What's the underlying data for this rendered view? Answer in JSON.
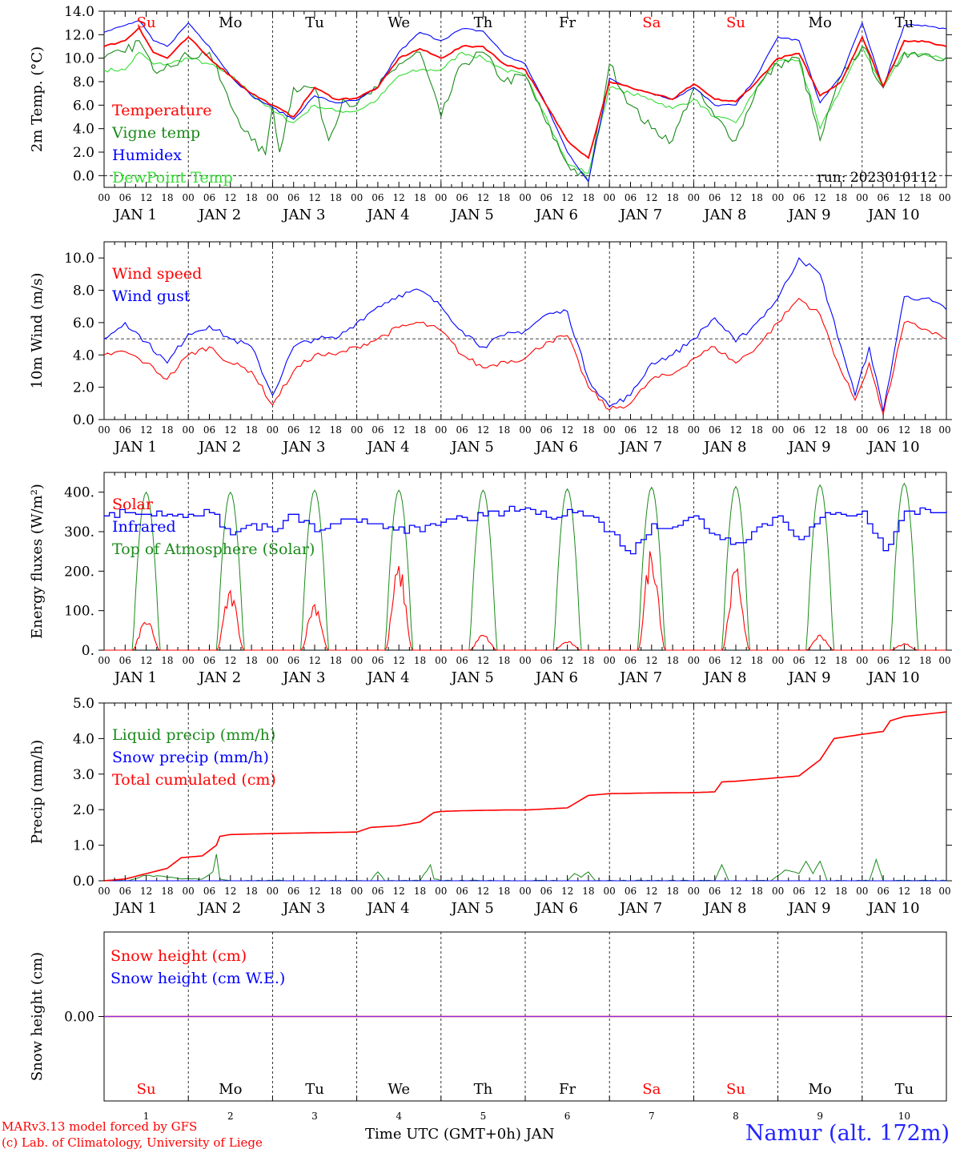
{
  "footer": {
    "credit_line1": "MARv3.13 model forced by GFS",
    "credit_line2": "(c) Lab. of Climatology, University of Liege",
    "xaxis_title": "Time UTC (GMT+0h) JAN",
    "station": "Namur (alt. 172m)"
  },
  "colors": {
    "red": "#ff0000",
    "green": "#1a8a1a",
    "blue": "#0000ff",
    "lightgreen": "#33dd33",
    "purple": "#8a2be2"
  },
  "days": {
    "weekday": [
      "Su",
      "Mo",
      "Tu",
      "We",
      "Th",
      "Fr",
      "Sa",
      "Su",
      "Mo",
      "Tu"
    ],
    "weekend_red": [
      true,
      false,
      false,
      false,
      false,
      false,
      true,
      true,
      false,
      false
    ],
    "date_labels": [
      "JAN  1",
      "JAN  2",
      "JAN  3",
      "JAN  4",
      "JAN  5",
      "JAN  6",
      "JAN  7",
      "JAN  8",
      "JAN  9",
      "JAN 10"
    ],
    "day_numbers": [
      "1",
      "2",
      "3",
      "4",
      "5",
      "6",
      "7",
      "8",
      "9",
      "10"
    ],
    "hour_ticks": [
      "00",
      "06",
      "12",
      "18"
    ],
    "end_tick": "00"
  },
  "chart_data": [
    {
      "type": "line",
      "ylabel": "2m Temp. (°C)",
      "ylim": [
        -1,
        14
      ],
      "yticks": [
        "0.0",
        "2.0",
        "4.0",
        "6.0",
        "8.0",
        "10.0",
        "12.0",
        "14.0"
      ],
      "annotation": "run: 2023010112",
      "dashed_y": 0,
      "x_unit": "hours since JAN 1 00 UTC",
      "legend": [
        "Temperature",
        "Vigne temp",
        "Humidex",
        "DewPoint Temp"
      ],
      "series": [
        {
          "name": "Temperature",
          "color": "red",
          "x": [
            0,
            6,
            10,
            14,
            18,
            24,
            30,
            36,
            42,
            48,
            54,
            60,
            66,
            72,
            78,
            84,
            90,
            96,
            102,
            108,
            114,
            120,
            126,
            132,
            138,
            144,
            150,
            156,
            162,
            168,
            174,
            180,
            186,
            192,
            198,
            204,
            210,
            216,
            222,
            228,
            234,
            240
          ],
          "y": [
            11.0,
            11.5,
            12.6,
            10.5,
            10.0,
            11.8,
            10.0,
            8.5,
            7.0,
            6.0,
            5.0,
            7.5,
            6.5,
            6.6,
            7.5,
            10.0,
            10.8,
            10.0,
            11.0,
            11.0,
            9.5,
            9.0,
            6.0,
            3.0,
            1.5,
            8.0,
            7.5,
            7.0,
            6.5,
            7.8,
            6.5,
            6.3,
            8.0,
            10.0,
            10.4,
            6.8,
            8.0,
            11.8,
            7.6,
            11.5,
            11.4,
            11.0
          ]
        },
        {
          "name": "Vigne temp",
          "color": "green",
          "x": [
            0,
            6,
            10,
            14,
            18,
            24,
            30,
            36,
            42,
            46,
            48,
            50,
            54,
            60,
            64,
            68,
            72,
            78,
            84,
            90,
            96,
            102,
            108,
            114,
            120,
            126,
            132,
            138,
            144,
            150,
            156,
            162,
            168,
            174,
            180,
            186,
            192,
            198,
            204,
            210,
            216,
            222,
            228,
            234,
            240
          ],
          "y": [
            10.0,
            10.5,
            11.5,
            9.0,
            9.5,
            10.2,
            10.5,
            6.0,
            3.0,
            1.8,
            6.0,
            2.0,
            7.5,
            7.5,
            3.0,
            6.5,
            6.0,
            7.5,
            9.5,
            10.5,
            5.0,
            9.5,
            10.5,
            8.0,
            8.5,
            4.5,
            1.0,
            -0.5,
            9.5,
            6.0,
            4.0,
            3.0,
            7.5,
            5.0,
            3.0,
            7.5,
            9.5,
            10.0,
            3.0,
            8.5,
            11.0,
            7.5,
            10.5,
            10.4,
            10.1
          ]
        },
        {
          "name": "Humidex",
          "color": "blue",
          "x": [
            0,
            6,
            10,
            14,
            18,
            24,
            30,
            36,
            42,
            48,
            54,
            60,
            66,
            72,
            78,
            84,
            90,
            96,
            102,
            108,
            114,
            120,
            126,
            132,
            138,
            144,
            150,
            156,
            162,
            168,
            174,
            180,
            186,
            192,
            198,
            204,
            210,
            216,
            222,
            228,
            234,
            240
          ],
          "y": [
            12.2,
            12.8,
            13.2,
            11.5,
            11.0,
            13.0,
            11.0,
            8.5,
            6.8,
            5.8,
            4.8,
            6.8,
            6.2,
            6.4,
            7.5,
            10.5,
            12.2,
            11.5,
            12.5,
            12.3,
            10.3,
            9.5,
            6.0,
            2.0,
            -0.5,
            8.3,
            7.5,
            7.0,
            6.5,
            7.5,
            6.0,
            6.0,
            8.5,
            11.8,
            11.5,
            6.2,
            8.5,
            13.0,
            7.5,
            12.8,
            12.8,
            12.5
          ]
        },
        {
          "name": "DewPoint Temp",
          "color": "lightgreen",
          "x": [
            0,
            6,
            10,
            14,
            18,
            24,
            30,
            36,
            42,
            48,
            54,
            60,
            66,
            72,
            78,
            84,
            90,
            96,
            102,
            108,
            114,
            120,
            126,
            132,
            138,
            144,
            150,
            156,
            162,
            168,
            174,
            180,
            186,
            192,
            198,
            204,
            210,
            216,
            222,
            228,
            234,
            240
          ],
          "y": [
            9.0,
            9.0,
            10.5,
            9.5,
            9.5,
            10.0,
            9.5,
            8.5,
            7.0,
            5.5,
            4.5,
            6.0,
            5.5,
            5.5,
            6.5,
            8.5,
            9.0,
            9.0,
            10.5,
            10.0,
            9.0,
            8.5,
            5.0,
            1.0,
            0.2,
            7.5,
            7.0,
            6.5,
            5.7,
            6.5,
            5.0,
            4.5,
            7.5,
            9.8,
            9.8,
            4.0,
            7.5,
            11.0,
            7.5,
            10.5,
            10.3,
            10.0
          ]
        }
      ]
    },
    {
      "type": "line",
      "ylabel": "10m Wind (m/s)",
      "ylim": [
        0,
        11
      ],
      "yticks": [
        "0.0",
        "2.0",
        "4.0",
        "6.0",
        "8.0",
        "10.0"
      ],
      "dashed_y": 5,
      "legend": [
        "Wind speed",
        "Wind gust"
      ],
      "series": [
        {
          "name": "Wind speed",
          "color": "red",
          "x": [
            0,
            6,
            12,
            18,
            24,
            30,
            36,
            42,
            48,
            54,
            60,
            66,
            72,
            78,
            84,
            90,
            96,
            102,
            108,
            114,
            120,
            126,
            132,
            138,
            144,
            150,
            156,
            162,
            168,
            174,
            180,
            186,
            192,
            198,
            204,
            210,
            214,
            218,
            222,
            228,
            234,
            240
          ],
          "y": [
            4.0,
            4.2,
            3.5,
            2.5,
            4.0,
            4.5,
            3.5,
            3.0,
            0.9,
            3.0,
            4.0,
            4.0,
            4.5,
            5.0,
            5.7,
            6.0,
            5.5,
            4.0,
            3.2,
            3.6,
            3.8,
            4.8,
            5.2,
            2.0,
            0.6,
            1.0,
            2.5,
            2.8,
            3.8,
            4.5,
            3.5,
            4.5,
            6.0,
            7.5,
            6.5,
            3.0,
            1.2,
            3.5,
            0.3,
            6.0,
            5.6,
            5.0
          ]
        },
        {
          "name": "Wind gust",
          "color": "blue",
          "x": [
            0,
            6,
            12,
            18,
            24,
            30,
            36,
            42,
            48,
            54,
            60,
            66,
            72,
            78,
            84,
            90,
            96,
            102,
            108,
            114,
            120,
            126,
            132,
            138,
            144,
            150,
            156,
            162,
            168,
            174,
            180,
            186,
            192,
            198,
            204,
            210,
            214,
            218,
            222,
            228,
            234,
            240
          ],
          "y": [
            5.0,
            6.0,
            4.8,
            3.5,
            5.3,
            5.8,
            5.0,
            4.5,
            1.5,
            4.5,
            5.0,
            5.0,
            6.0,
            7.0,
            7.7,
            8.0,
            7.0,
            5.5,
            4.5,
            5.2,
            5.5,
            6.5,
            6.7,
            2.5,
            0.8,
            1.5,
            3.5,
            4.0,
            5.0,
            6.3,
            4.8,
            6.0,
            7.5,
            10.0,
            9.0,
            4.5,
            1.5,
            4.5,
            0.5,
            7.6,
            7.5,
            6.8
          ]
        }
      ]
    },
    {
      "type": "line",
      "ylabel": "Energy fluxes (W/m²)",
      "ylim": [
        0,
        450
      ],
      "yticks": [
        "0.",
        "100.",
        "200.",
        "300.",
        "400."
      ],
      "legend": [
        "Solar",
        "Infrared",
        "Top of Atmosphere (Solar)"
      ],
      "toa_peak": [
        400,
        400,
        405,
        405,
        405,
        408,
        412,
        414,
        418,
        422
      ],
      "solar_peak": [
        70,
        135,
        110,
        190,
        35,
        20,
        230,
        185,
        35,
        15
      ],
      "series": [
        {
          "name": "Infrared",
          "color": "blue",
          "x": [
            0,
            6,
            12,
            18,
            24,
            30,
            36,
            42,
            48,
            54,
            60,
            66,
            72,
            78,
            84,
            90,
            96,
            102,
            108,
            114,
            120,
            126,
            132,
            138,
            144,
            150,
            156,
            162,
            168,
            174,
            180,
            186,
            192,
            198,
            204,
            210,
            216,
            222,
            228,
            234,
            240
          ],
          "y": [
            340,
            348,
            345,
            345,
            345,
            348,
            290,
            320,
            300,
            345,
            300,
            320,
            325,
            320,
            310,
            300,
            325,
            335,
            340,
            350,
            360,
            335,
            355,
            340,
            300,
            245,
            320,
            310,
            340,
            290,
            270,
            310,
            340,
            280,
            335,
            345,
            350,
            250,
            350,
            355,
            350
          ]
        }
      ]
    },
    {
      "type": "line",
      "ylabel": "Precip (mm/h)",
      "ylim": [
        0,
        5
      ],
      "yticks": [
        "0.0",
        "1.0",
        "2.0",
        "3.0",
        "4.0",
        "5.0"
      ],
      "legend": [
        "Liquid precip (mm/h)",
        "Snow precip (mm/h)",
        "Total cumulated (cm)"
      ],
      "series": [
        {
          "name": "Total cumulated (cm)",
          "color": "red",
          "x": [
            0,
            6,
            12,
            18,
            22,
            28,
            32,
            33,
            36,
            48,
            60,
            72,
            76,
            84,
            90,
            94,
            96,
            102,
            108,
            114,
            120,
            132,
            138,
            144,
            156,
            168,
            174,
            176,
            180,
            186,
            198,
            204,
            208,
            216,
            222,
            224,
            228,
            240
          ],
          "y": [
            0.0,
            0.05,
            0.2,
            0.35,
            0.65,
            0.7,
            1.0,
            1.25,
            1.3,
            1.33,
            1.35,
            1.37,
            1.5,
            1.55,
            1.65,
            1.92,
            1.95,
            1.97,
            1.98,
            1.99,
            1.99,
            2.05,
            2.4,
            2.45,
            2.47,
            2.48,
            2.5,
            2.78,
            2.8,
            2.85,
            2.95,
            3.4,
            4.0,
            4.12,
            4.2,
            4.5,
            4.62,
            4.75
          ]
        },
        {
          "name": "Liquid precip (mm/h)",
          "color": "green",
          "x": [
            0,
            6,
            12,
            18,
            22,
            28,
            31,
            32,
            33,
            36,
            48,
            76,
            78,
            80,
            90,
            93,
            94,
            96,
            100,
            132,
            134,
            136,
            138,
            140,
            174,
            176,
            178,
            190,
            194,
            198,
            200,
            202,
            204,
            206,
            210,
            218,
            220,
            222,
            240
          ],
          "y": [
            0,
            0,
            0.15,
            0.1,
            0.05,
            0.05,
            0.25,
            0.75,
            0.05,
            0,
            0,
            0,
            0.25,
            0,
            0,
            0.45,
            0.05,
            0,
            0,
            0,
            0.2,
            0.1,
            0.25,
            0,
            0,
            0.45,
            0,
            0,
            0.3,
            0.2,
            0.55,
            0.2,
            0.55,
            0,
            0,
            0,
            0.6,
            0,
            0
          ]
        },
        {
          "name": "Snow precip (mm/h)",
          "color": "blue",
          "x": [
            0,
            240
          ],
          "y": [
            0,
            0
          ]
        }
      ]
    },
    {
      "type": "line",
      "ylabel": "Snow height (cm)",
      "yticks": [
        "0.00"
      ],
      "legend": [
        "Snow height (cm)",
        "Snow height (cm W.E.)"
      ],
      "series": [
        {
          "name": "Snow height (cm)",
          "color": "red",
          "x": [
            0,
            240
          ],
          "y": [
            0,
            0
          ]
        },
        {
          "name": "Snow height (cm W.E.)",
          "color": "purple",
          "x": [
            0,
            240
          ],
          "y": [
            0,
            0
          ]
        }
      ]
    }
  ]
}
